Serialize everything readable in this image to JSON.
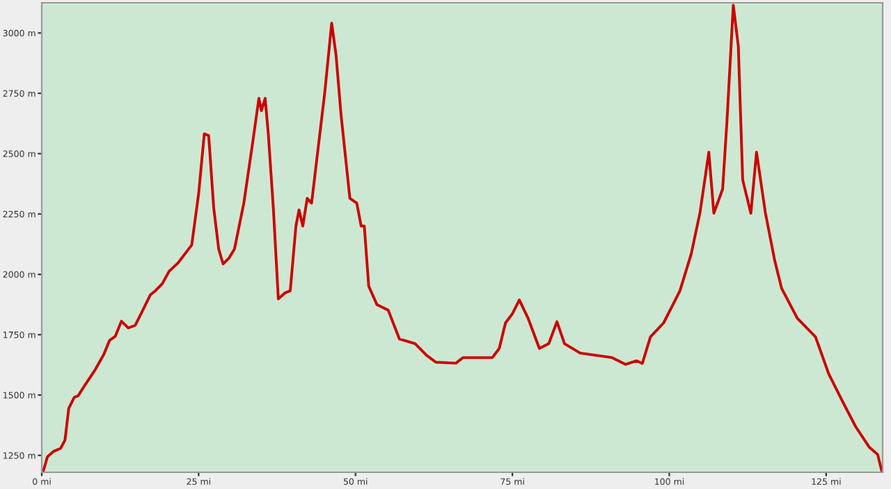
{
  "chart_data": {
    "type": "line",
    "x": [
      0.2,
      0.9,
      1.9,
      3.0,
      3.7,
      4.3,
      5.2,
      5.8,
      6.9,
      8.4,
      9.9,
      10.8,
      11.7,
      12.7,
      13.8,
      14.9,
      16.0,
      17.3,
      18.1,
      19.2,
      20.3,
      21.7,
      23.9,
      25.0,
      25.9,
      26.6,
      27.4,
      28.2,
      28.9,
      29.8,
      30.7,
      32.2,
      33.6,
      34.6,
      35.0,
      35.6,
      36.1,
      36.9,
      37.7,
      38.7,
      39.6,
      40.5,
      41.0,
      41.6,
      42.3,
      43.0,
      43.7,
      45.1,
      46.2,
      46.9,
      47.7,
      49.1,
      50.2,
      50.9,
      51.4,
      52.1,
      53.4,
      55.2,
      57.0,
      59.5,
      61.3,
      62.8,
      66.0,
      67.1,
      71.8,
      72.9,
      73.9,
      75.0,
      76.1,
      77.5,
      79.3,
      80.8,
      82.1,
      83.3,
      85.8,
      90.9,
      93.0,
      94.8,
      95.7,
      97.0,
      99.1,
      101.7,
      103.5,
      104.9,
      106.3,
      107.1,
      108.5,
      109.2,
      110.2,
      111.0,
      111.7,
      113.0,
      113.9,
      115.3,
      116.8,
      117.9,
      120.4,
      123.3,
      125.4,
      127.6,
      129.7,
      131.9,
      133.2,
      133.9
    ],
    "series": [
      {
        "color": "#cc0000",
        "values": [
          1181,
          1244,
          1267,
          1279,
          1313,
          1445,
          1491,
          1497,
          1542,
          1600,
          1669,
          1726,
          1743,
          1806,
          1778,
          1789,
          1846,
          1915,
          1932,
          1961,
          2013,
          2047,
          2122,
          2334,
          2582,
          2575,
          2276,
          2104,
          2043,
          2066,
          2104,
          2295,
          2544,
          2729,
          2678,
          2729,
          2582,
          2276,
          1898,
          1922,
          1932,
          2200,
          2267,
          2200,
          2315,
          2295,
          2448,
          2754,
          3041,
          2907,
          2659,
          2315,
          2295,
          2200,
          2200,
          1951,
          1875,
          1852,
          1732,
          1713,
          1665,
          1636,
          1632,
          1655,
          1655,
          1693,
          1799,
          1837,
          1894,
          1818,
          1693,
          1713,
          1804,
          1713,
          1674,
          1655,
          1627,
          1642,
          1631,
          1741,
          1799,
          1932,
          2085,
          2257,
          2506,
          2253,
          2353,
          2639,
          3115,
          2945,
          2391,
          2253,
          2506,
          2257,
          2057,
          1942,
          1818,
          1741,
          1588,
          1474,
          1369,
          1283,
          1254,
          1181
        ]
      }
    ],
    "xlim": [
      0,
      134
    ],
    "ylim": [
      1180,
      3125
    ],
    "xticks": [
      {
        "value": 0,
        "label": "0 mi"
      },
      {
        "value": 25,
        "label": "25 mi"
      },
      {
        "value": 50,
        "label": "50 mi"
      },
      {
        "value": 75,
        "label": "75 mi"
      },
      {
        "value": 100,
        "label": "100 mi"
      },
      {
        "value": 125,
        "label": "125 mi"
      }
    ],
    "yticks": [
      {
        "value": 1250,
        "label": "1250 m"
      },
      {
        "value": 1500,
        "label": "1500 m"
      },
      {
        "value": 1750,
        "label": "1750 m"
      },
      {
        "value": 2000,
        "label": "2000 m"
      },
      {
        "value": 2250,
        "label": "2250 m"
      },
      {
        "value": 2500,
        "label": "2500 m"
      },
      {
        "value": 2750,
        "label": "2750 m"
      },
      {
        "value": 3000,
        "label": "3000 m"
      }
    ],
    "grid": false,
    "marker": "none",
    "line_style": "solid"
  }
}
